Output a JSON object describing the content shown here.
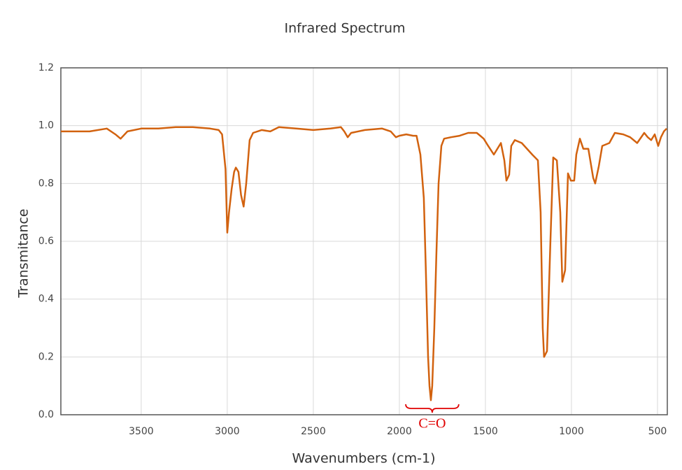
{
  "chart_data": {
    "type": "line",
    "title": "Infrared Spectrum",
    "x_label": "Wavenumbers (cm-1)",
    "y_label": "Transmitance",
    "xlim": [
      3967,
      443
    ],
    "ylim": [
      0,
      1.2
    ],
    "xticks": [
      3500,
      3000,
      2500,
      2000,
      1500,
      1000,
      500
    ],
    "yticks": [
      {
        "value": 0,
        "label": "0.0"
      },
      0.2,
      0.4,
      0.6,
      0.8,
      {
        "value": 1,
        "label": "1.0"
      },
      1.2
    ],
    "grid": true,
    "series": [
      {
        "name": "Transmitance",
        "color": "#d2620f",
        "x": [
          3967,
          3900,
          3800,
          3700,
          3650,
          3620,
          3580,
          3500,
          3400,
          3300,
          3200,
          3100,
          3050,
          3030,
          3010,
          3000,
          2990,
          2975,
          2960,
          2950,
          2935,
          2920,
          2905,
          2890,
          2870,
          2850,
          2800,
          2750,
          2700,
          2600,
          2500,
          2400,
          2340,
          2320,
          2300,
          2280,
          2200,
          2100,
          2050,
          2020,
          2000,
          1960,
          1920,
          1900,
          1878,
          1858,
          1846,
          1833,
          1825,
          1817,
          1809,
          1797,
          1785,
          1772,
          1756,
          1740,
          1700,
          1650,
          1600,
          1550,
          1530,
          1510,
          1484,
          1451,
          1410,
          1390,
          1378,
          1362,
          1350,
          1329,
          1289,
          1228,
          1195,
          1179,
          1167,
          1159,
          1142,
          1122,
          1106,
          1085,
          1065,
          1053,
          1037,
          1020,
          1004,
          984,
          972,
          951,
          931,
          902,
          874,
          862,
          841,
          821,
          780,
          748,
          699,
          659,
          618,
          577,
          557,
          537,
          516,
          496,
          480,
          463,
          447
        ],
        "values": [
          0.98,
          0.98,
          0.98,
          0.99,
          0.97,
          0.955,
          0.98,
          0.99,
          0.99,
          0.995,
          0.995,
          0.99,
          0.985,
          0.97,
          0.85,
          0.63,
          0.7,
          0.78,
          0.84,
          0.855,
          0.84,
          0.76,
          0.72,
          0.8,
          0.95,
          0.975,
          0.985,
          0.98,
          0.995,
          0.99,
          0.985,
          0.99,
          0.995,
          0.98,
          0.96,
          0.975,
          0.985,
          0.99,
          0.98,
          0.96,
          0.965,
          0.97,
          0.965,
          0.965,
          0.9,
          0.75,
          0.5,
          0.2,
          0.1,
          0.05,
          0.1,
          0.3,
          0.55,
          0.8,
          0.93,
          0.955,
          0.96,
          0.965,
          0.975,
          0.975,
          0.965,
          0.955,
          0.93,
          0.9,
          0.94,
          0.88,
          0.81,
          0.83,
          0.93,
          0.95,
          0.94,
          0.9,
          0.88,
          0.7,
          0.3,
          0.2,
          0.22,
          0.6,
          0.89,
          0.88,
          0.7,
          0.46,
          0.5,
          0.835,
          0.81,
          0.81,
          0.9,
          0.955,
          0.92,
          0.92,
          0.82,
          0.8,
          0.86,
          0.93,
          0.94,
          0.975,
          0.97,
          0.96,
          0.94,
          0.975,
          0.96,
          0.95,
          0.97,
          0.93,
          0.96,
          0.98,
          0.99
        ]
      }
    ],
    "annotations": [
      {
        "text": "C=O",
        "x": [
          1963,
          1655
        ],
        "color": "#e00000"
      }
    ]
  }
}
